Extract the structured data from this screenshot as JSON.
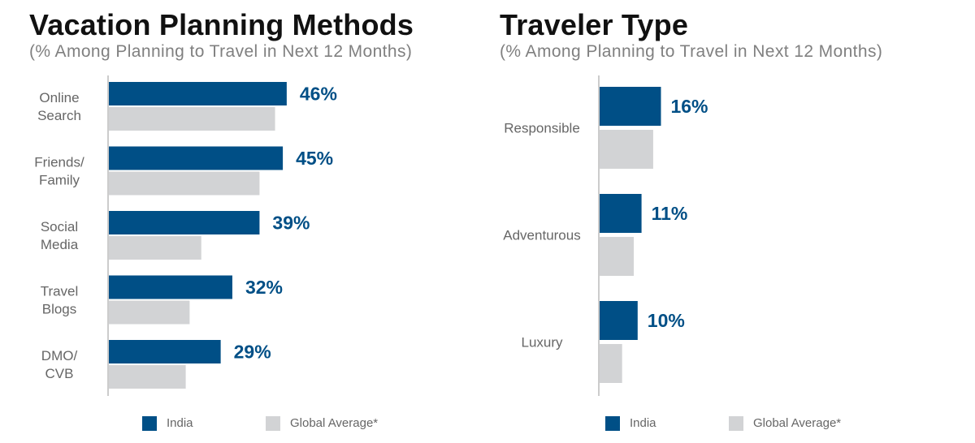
{
  "colors": {
    "india": "#004f86",
    "global": "#d2d3d5",
    "axis": "#999999",
    "category_text": "#666666",
    "value_text": "#004f86"
  },
  "chart_data": [
    {
      "type": "bar",
      "orientation": "horizontal",
      "title": "Vacation Planning Methods",
      "subtitle": "(% Among Planning to Travel in Next 12 Months)",
      "categories": [
        "Online Search",
        "Friends/ Family",
        "Social Media",
        "Travel Blogs",
        "DMO/ CVB"
      ],
      "category_lines": [
        [
          "Online",
          "Search"
        ],
        [
          "Friends/",
          "Family"
        ],
        [
          "Social",
          "Media"
        ],
        [
          "Travel",
          "Blogs"
        ],
        [
          "DMO/",
          "CVB"
        ]
      ],
      "series": [
        {
          "name": "India",
          "values": [
            46,
            45,
            39,
            32,
            29
          ]
        },
        {
          "name": "Global Average*",
          "values": [
            43,
            39,
            24,
            21,
            20
          ]
        }
      ],
      "value_labels": [
        "46%",
        "45%",
        "39%",
        "32%",
        "29%"
      ],
      "xlim": [
        0,
        100
      ],
      "legend": [
        "India",
        "Global Average*"
      ],
      "legend_position": "bottom"
    },
    {
      "type": "bar",
      "orientation": "horizontal",
      "title": "Traveler Type",
      "subtitle": "(% Among Planning to Travel in Next 12 Months)",
      "categories": [
        "Responsible",
        "Adventurous",
        "Luxury"
      ],
      "category_lines": [
        [
          "Responsible"
        ],
        [
          "Adventurous"
        ],
        [
          "Luxury"
        ]
      ],
      "series": [
        {
          "name": "India",
          "values": [
            16,
            11,
            10
          ]
        },
        {
          "name": "Global Average*",
          "values": [
            14,
            9,
            6
          ]
        }
      ],
      "value_labels": [
        "16%",
        "11%",
        "10%"
      ],
      "xlim": [
        0,
        100
      ],
      "legend": [
        "India",
        "Global Average*"
      ],
      "legend_position": "bottom"
    }
  ]
}
